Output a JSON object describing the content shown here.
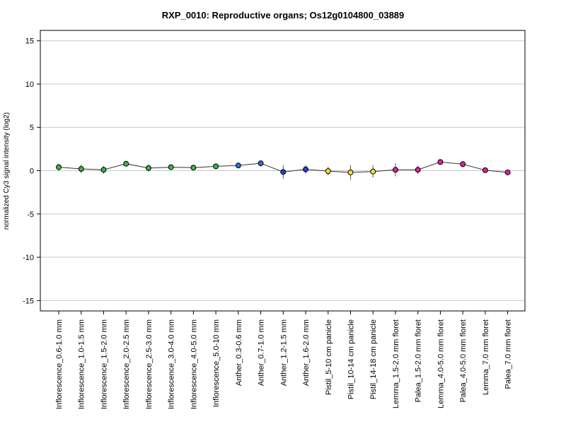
{
  "chart_data": {
    "type": "line",
    "title": "RXP_0010: Reproductive organs; Os12g0104800_03889",
    "xlabel": "",
    "ylabel": "normalized Cy3 signal intensity (log2)",
    "ylim": [
      -16.2,
      16.2
    ],
    "yticks": [
      15,
      10,
      5,
      0,
      -5,
      -10,
      -15
    ],
    "grid": true,
    "categories": [
      "Inflorescence_0.6-1.0 mm",
      "Inflorescence_1.0-1.5 mm",
      "Inflorescence_1.5-2.0 mm",
      "Inflorescence_2.0-2.5 mm",
      "Inflorescence_2.5-3.0 mm",
      "Inflorescence_3.0-4.0 mm",
      "Inflorescence_4.0-5.0 mm",
      "Inflorescence_5.0-10 mm",
      "Anther_0.3-0.6 mm",
      "Anther_0.7-1.0 mm",
      "Anther_1.2-1.5 mm",
      "Anther_1.6-2.0 mm",
      "Pistil_5-10 cm panicle",
      "Pistil_10-14 cm panicle",
      "Pistil_14-18 cm panicle",
      "Lemma_1.5-2.0 mm floret",
      "Palea_1.5-2.0 mm floret",
      "Lemma_4.0-5.0 mm floret",
      "Palea_4.0-5.0 mm floret",
      "Lemma_7.0 mm floret",
      "Palea_7.0 mm floret"
    ],
    "values": [
      0.4,
      0.2,
      0.1,
      0.8,
      0.3,
      0.4,
      0.35,
      0.5,
      0.6,
      0.85,
      -0.15,
      0.15,
      -0.05,
      -0.2,
      -0.1,
      0.1,
      0.1,
      1.0,
      0.75,
      0.05,
      -0.2
    ],
    "error": [
      0.4,
      0.5,
      0.45,
      0.15,
      0.4,
      0.3,
      0.25,
      0.25,
      0.1,
      0.35,
      0.8,
      0.5,
      0.5,
      0.85,
      0.7,
      0.75,
      0.5,
      0.2,
      0.35,
      0.2,
      0.2
    ],
    "colors": [
      "#3cb43c",
      "#3cb43c",
      "#3cb43c",
      "#3cb43c",
      "#3cb43c",
      "#3cb43c",
      "#3cb43c",
      "#3cb43c",
      "#2b6fd6",
      "#2b6fd6",
      "#2b3fcc",
      "#2b3fcc",
      "#f0e030",
      "#f0e030",
      "#f0e030",
      "#e020a0",
      "#e020a0",
      "#e020a0",
      "#e020a0",
      "#e020a0",
      "#e020a0"
    ],
    "line_color": "#333333",
    "grid_color": "#c8c8c8"
  }
}
